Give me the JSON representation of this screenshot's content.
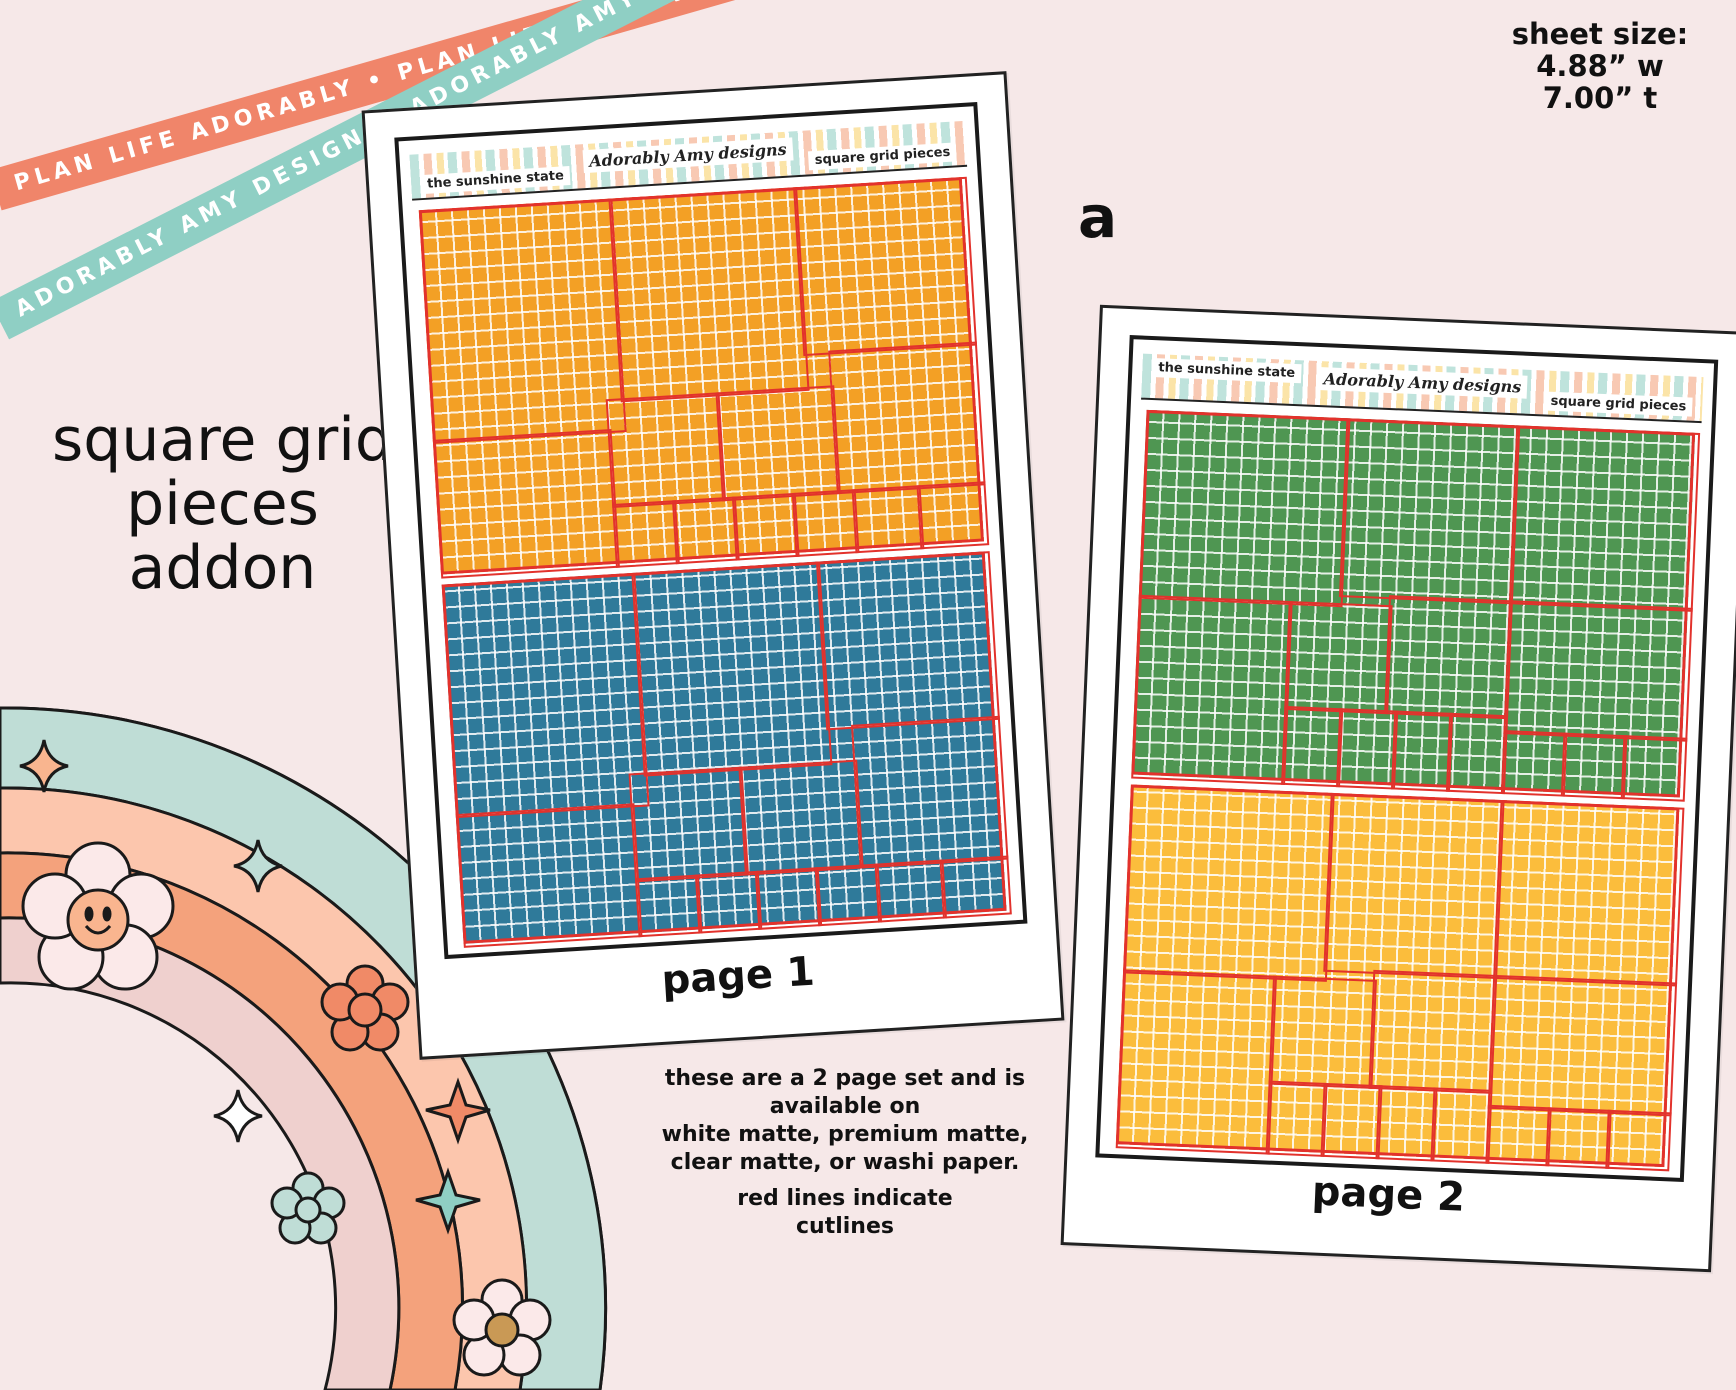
{
  "ribbons": {
    "coral_text": "PLAN LIFE ADORABLY • PLAN LIFE ADORABLY • PLAN LIFE ADORABLY •",
    "teal_text": "ADORABLY AMY DESIGNS• ADORABLY AMY DESIGNS • ADORABLY AMY DESIGNS •",
    "coral_color": "#f0856a",
    "teal_color": "#8fcfc4"
  },
  "title": {
    "line1": "square grid",
    "line2": "pieces",
    "line3": "addon"
  },
  "sheet_size": {
    "label": "sheet size:",
    "width": "4.88” w",
    "height": "7.00” t"
  },
  "variant_letter": "a",
  "pages": [
    {
      "label": "page 1",
      "header_left": "the sunshine state",
      "header_brand": "Adorably Amy designs",
      "header_right": "square grid pieces",
      "top_color": "#f3a025",
      "bottom_color": "#2f7a9a"
    },
    {
      "label": "page 2",
      "header_left": "the sunshine state",
      "header_brand": "Adorably Amy designs",
      "header_right": "square grid pieces",
      "top_color": "#4f9652",
      "bottom_color": "#fbbd3c"
    }
  ],
  "info": {
    "line1": "these are a 2 page set and is",
    "line2": "available on",
    "line3": "white matte, premium matte,",
    "line4": "clear matte, or washi paper.",
    "line5": "red lines indicate",
    "line6": "cutlines"
  },
  "cutline_color": "#e2322c",
  "rainbow_colors": [
    "#bfddd6",
    "#fcc6ad",
    "#f4a27c",
    "#efd0ce"
  ],
  "decor_icons": [
    "smiley-flower-icon",
    "flower-icon",
    "sparkle-icon",
    "star-icon"
  ]
}
